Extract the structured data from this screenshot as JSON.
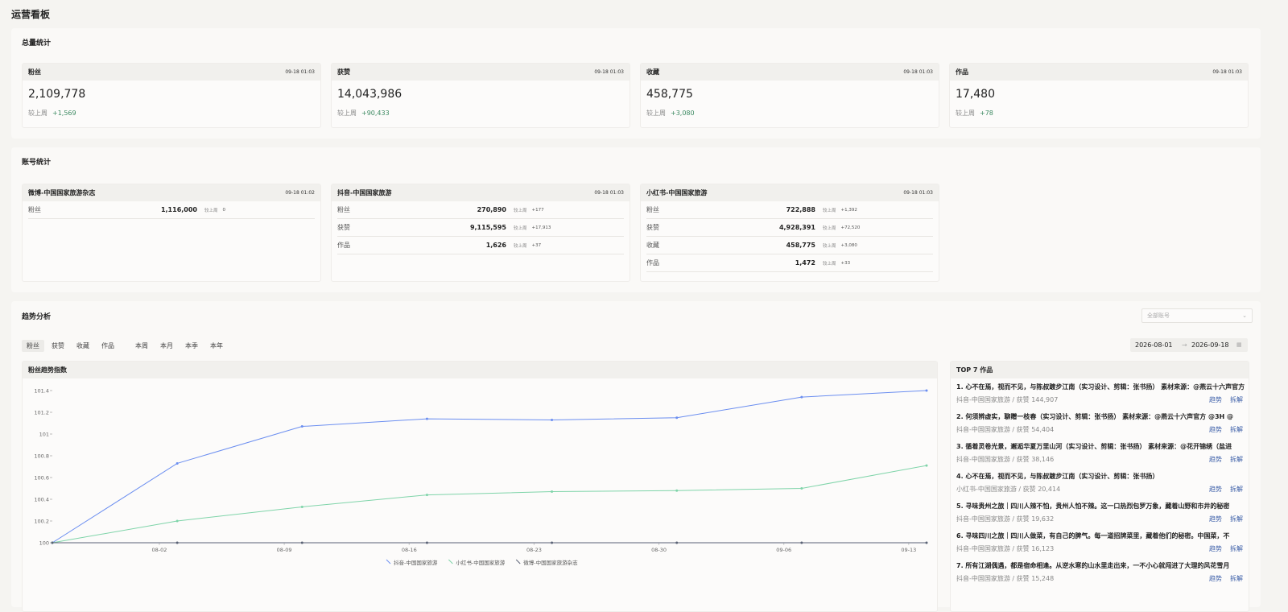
{
  "header": {
    "title": "运营看板"
  },
  "summary": {
    "title": "总量统计",
    "compare_label": "较上周",
    "cards": [
      {
        "label": "粉丝",
        "time": "09-18 01:03",
        "value": "2,109,778",
        "delta": "+1,569"
      },
      {
        "label": "获赞",
        "time": "09-18 01:03",
        "value": "14,043,986",
        "delta": "+90,433"
      },
      {
        "label": "收藏",
        "time": "09-18 01:03",
        "value": "458,775",
        "delta": "+3,080"
      },
      {
        "label": "作品",
        "time": "09-18 01:03",
        "value": "17,480",
        "delta": "+78"
      }
    ]
  },
  "accounts": {
    "title": "账号统计",
    "compare_label": "较上周",
    "cards": [
      {
        "name": "微博-中国国家旅游杂志",
        "time": "09-18 01:02",
        "rows": [
          {
            "label": "粉丝",
            "value": "1,116,000",
            "delta": "0"
          }
        ]
      },
      {
        "name": "抖音-中国国家旅游",
        "time": "09-18 01:03",
        "rows": [
          {
            "label": "粉丝",
            "value": "270,890",
            "delta": "+177"
          },
          {
            "label": "获赞",
            "value": "9,115,595",
            "delta": "+17,913"
          },
          {
            "label": "作品",
            "value": "1,626",
            "delta": "+37"
          }
        ]
      },
      {
        "name": "小红书-中国国家旅游",
        "time": "09-18 01:03",
        "rows": [
          {
            "label": "粉丝",
            "value": "722,888",
            "delta": "+1,392"
          },
          {
            "label": "获赞",
            "value": "4,928,391",
            "delta": "+72,520"
          },
          {
            "label": "收藏",
            "value": "458,775",
            "delta": "+3,080"
          },
          {
            "label": "作品",
            "value": "1,472",
            "delta": "+33"
          }
        ]
      }
    ]
  },
  "trend": {
    "title": "趋势分析",
    "account_select": "全部账号",
    "metric_tabs": [
      "粉丝",
      "获赞",
      "收藏",
      "作品"
    ],
    "period_tabs": [
      "本周",
      "本月",
      "本季",
      "本年"
    ],
    "date_start": "2026-08-01",
    "date_end": "2026-09-18"
  },
  "chart_data": {
    "type": "line",
    "title": "粉丝趋势指数",
    "x": [
      "07-27",
      "08-03",
      "08-10",
      "08-17",
      "08-24",
      "08-31",
      "09-07",
      "09-14"
    ],
    "xlim": [
      "07-27",
      "09-14"
    ],
    "xticks": [
      "08-02",
      "08-09",
      "08-16",
      "08-23",
      "08-30",
      "09-06",
      "09-13"
    ],
    "ylim": [
      100,
      101.4
    ],
    "yticks": [
      100,
      100.2,
      100.4,
      100.6,
      100.8,
      101,
      101.2,
      101.4
    ],
    "series": [
      {
        "name": "抖音-中国国家旅游",
        "color": "#6b8ef0",
        "values": [
          100,
          100.73,
          101.07,
          101.14,
          101.13,
          101.15,
          101.34,
          101.4
        ]
      },
      {
        "name": "小红书-中国国家旅游",
        "color": "#7fd4a9",
        "values": [
          100,
          100.2,
          100.33,
          100.44,
          100.47,
          100.48,
          100.5,
          100.71
        ]
      },
      {
        "name": "微博-中国国家旅游杂志",
        "color": "#5a6275",
        "values": [
          100,
          100,
          100,
          100,
          100,
          100,
          100,
          100
        ]
      }
    ]
  },
  "top": {
    "title": "TOP 7 作品",
    "actions": [
      "趋势",
      "拆解"
    ],
    "items": [
      {
        "title": "1. 心不在焉，视而不见，与陈叔踱步江南（实习设计、剪辑：张书扬） 素材来源：@燕云十六声官方",
        "meta": "抖音-中国国家旅游 / 获赞 144,907"
      },
      {
        "title": "2. 何须辨虚实，聊赠一枝春（实习设计、剪辑：张书扬） 素材来源：@燕云十六声官方 @3H @",
        "meta": "抖音-中国国家旅游 / 获赞 54,404"
      },
      {
        "title": "3. 循着灵卷光景，邂逅华夏万里山河（实习设计、剪辑：张书扬） 素材来源：@花开锦绣（盐进",
        "meta": "抖音-中国国家旅游 / 获赞 38,146"
      },
      {
        "title": "4. 心不在焉，视而不见，与陈叔踱步江南（实习设计、剪辑：张书扬）",
        "meta": "小红书-中国国家旅游 / 获赞 20,414"
      },
      {
        "title": "5. 寻味贵州之旅｜四川人辣不怕，贵州人怕不辣。这一口热烈包罗万象，藏着山野和市井的秘密",
        "meta": "抖音-中国国家旅游 / 获赞 19,632"
      },
      {
        "title": "6. 寻味四川之旅｜四川人做菜，有自己的脾气。每一道招牌菜里，藏着他们的秘密。中国菜，不",
        "meta": "抖音-中国国家旅游 / 获赞 16,123"
      },
      {
        "title": "7. 所有江湖偶遇，都是宿命相逢。从逆水寒的山水里走出来，一不小心就闯进了大理的风花雪月",
        "meta": "抖音-中国国家旅游 / 获赞 15,248"
      }
    ]
  }
}
